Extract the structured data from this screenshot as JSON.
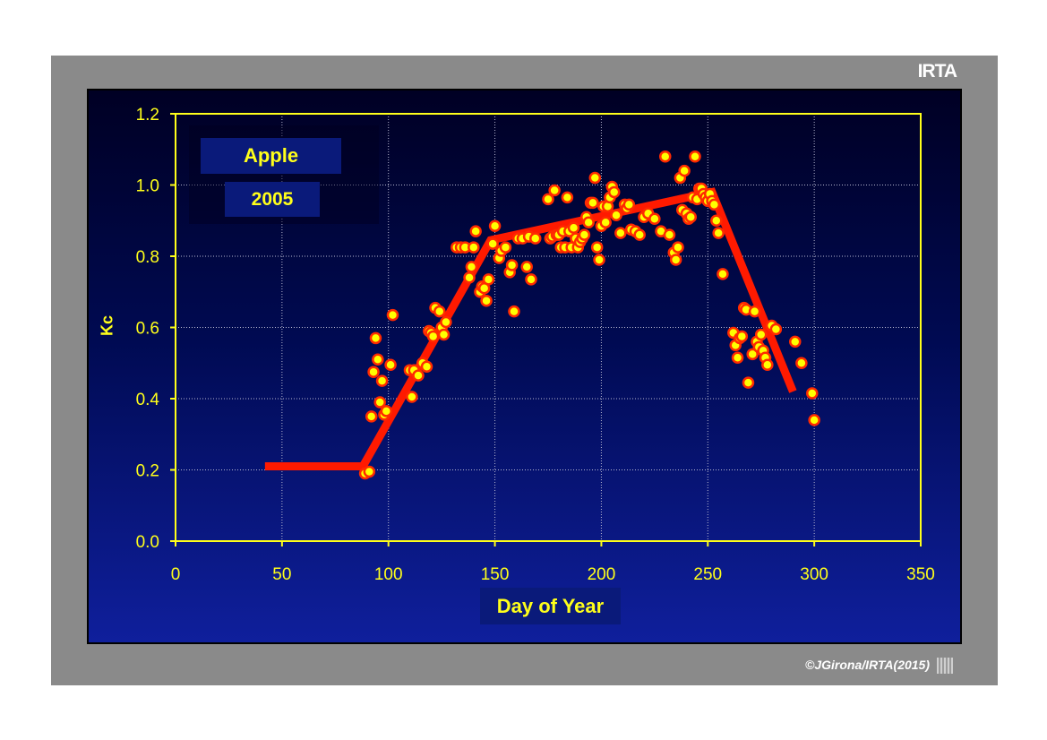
{
  "brand": "IRTA",
  "copyright": "©JGirona/IRTA(2015)",
  "chart_data": {
    "type": "scatter",
    "title": "",
    "series_label": "Apple",
    "year_label": "2005",
    "xlabel": "Day of Year",
    "ylabel": "Kc",
    "xlim": [
      0,
      350
    ],
    "ylim": [
      0.0,
      1.2
    ],
    "x_ticks": [
      "0",
      "50",
      "100",
      "150",
      "200",
      "250",
      "300",
      "350"
    ],
    "y_ticks": [
      "0.0",
      "0.2",
      "0.4",
      "0.6",
      "0.8",
      "1.0",
      "1.2"
    ],
    "grid": true,
    "marker_color": "#ffff00",
    "marker_edge_color": "#ff2a00",
    "line_color": "#ff1a00",
    "frame_color": "#ffff1a",
    "fitted_curve": [
      [
        42,
        0.21
      ],
      [
        88,
        0.21
      ],
      [
        148,
        0.845
      ],
      [
        252,
        0.98
      ],
      [
        290,
        0.42
      ]
    ],
    "points": [
      [
        89,
        0.19
      ],
      [
        91,
        0.195
      ],
      [
        92,
        0.35
      ],
      [
        93,
        0.475
      ],
      [
        94,
        0.57
      ],
      [
        95,
        0.51
      ],
      [
        96,
        0.39
      ],
      [
        97,
        0.45
      ],
      [
        98,
        0.355
      ],
      [
        99,
        0.365
      ],
      [
        101,
        0.495
      ],
      [
        102,
        0.635
      ],
      [
        110,
        0.48
      ],
      [
        111,
        0.405
      ],
      [
        112,
        0.48
      ],
      [
        114,
        0.465
      ],
      [
        116,
        0.5
      ],
      [
        118,
        0.49
      ],
      [
        119,
        0.59
      ],
      [
        120,
        0.585
      ],
      [
        121,
        0.575
      ],
      [
        122,
        0.655
      ],
      [
        124,
        0.645
      ],
      [
        125,
        0.6
      ],
      [
        126,
        0.58
      ],
      [
        127,
        0.615
      ],
      [
        132,
        0.825
      ],
      [
        134,
        0.825
      ],
      [
        136,
        0.825
      ],
      [
        138,
        0.74
      ],
      [
        139,
        0.77
      ],
      [
        140,
        0.825
      ],
      [
        141,
        0.87
      ],
      [
        143,
        0.7
      ],
      [
        144,
        0.715
      ],
      [
        145,
        0.71
      ],
      [
        146,
        0.675
      ],
      [
        147,
        0.735
      ],
      [
        149,
        0.835
      ],
      [
        150,
        0.885
      ],
      [
        152,
        0.795
      ],
      [
        153,
        0.815
      ],
      [
        155,
        0.825
      ],
      [
        157,
        0.755
      ],
      [
        158,
        0.775
      ],
      [
        159,
        0.645
      ],
      [
        161,
        0.85
      ],
      [
        163,
        0.85
      ],
      [
        165,
        0.77
      ],
      [
        166,
        0.855
      ],
      [
        167,
        0.735
      ],
      [
        169,
        0.85
      ],
      [
        175,
        0.96
      ],
      [
        176,
        0.85
      ],
      [
        177,
        0.855
      ],
      [
        178,
        0.985
      ],
      [
        179,
        0.86
      ],
      [
        180,
        0.86
      ],
      [
        181,
        0.825
      ],
      [
        182,
        0.87
      ],
      [
        183,
        0.825
      ],
      [
        184,
        0.965
      ],
      [
        185,
        0.87
      ],
      [
        186,
        0.825
      ],
      [
        187,
        0.88
      ],
      [
        188,
        0.85
      ],
      [
        189,
        0.825
      ],
      [
        190,
        0.84
      ],
      [
        191,
        0.85
      ],
      [
        192,
        0.86
      ],
      [
        193,
        0.91
      ],
      [
        194,
        0.895
      ],
      [
        195,
        0.95
      ],
      [
        196,
        0.95
      ],
      [
        197,
        1.02
      ],
      [
        198,
        0.825
      ],
      [
        199,
        0.79
      ],
      [
        200,
        0.885
      ],
      [
        201,
        0.94
      ],
      [
        202,
        0.895
      ],
      [
        203,
        0.94
      ],
      [
        204,
        0.965
      ],
      [
        205,
        0.995
      ],
      [
        206,
        0.98
      ],
      [
        207,
        0.915
      ],
      [
        209,
        0.865
      ],
      [
        211,
        0.945
      ],
      [
        212,
        0.935
      ],
      [
        213,
        0.945
      ],
      [
        214,
        0.875
      ],
      [
        216,
        0.87
      ],
      [
        218,
        0.86
      ],
      [
        220,
        0.91
      ],
      [
        222,
        0.92
      ],
      [
        225,
        0.905
      ],
      [
        228,
        0.87
      ],
      [
        230,
        1.08
      ],
      [
        232,
        0.86
      ],
      [
        234,
        0.81
      ],
      [
        235,
        0.79
      ],
      [
        236,
        0.825
      ],
      [
        237,
        1.02
      ],
      [
        238,
        0.93
      ],
      [
        239,
        1.04
      ],
      [
        240,
        0.92
      ],
      [
        241,
        0.905
      ],
      [
        242,
        0.91
      ],
      [
        243,
        0.965
      ],
      [
        244,
        1.08
      ],
      [
        245,
        0.96
      ],
      [
        246,
        0.99
      ],
      [
        247,
        0.99
      ],
      [
        248,
        0.975
      ],
      [
        249,
        0.965
      ],
      [
        250,
        0.955
      ],
      [
        251,
        0.975
      ],
      [
        252,
        0.955
      ],
      [
        253,
        0.945
      ],
      [
        254,
        0.9
      ],
      [
        255,
        0.865
      ],
      [
        257,
        0.75
      ],
      [
        262,
        0.585
      ],
      [
        263,
        0.55
      ],
      [
        264,
        0.515
      ],
      [
        265,
        0.57
      ],
      [
        266,
        0.575
      ],
      [
        267,
        0.655
      ],
      [
        268,
        0.65
      ],
      [
        269,
        0.445
      ],
      [
        271,
        0.525
      ],
      [
        272,
        0.645
      ],
      [
        273,
        0.56
      ],
      [
        274,
        0.545
      ],
      [
        275,
        0.58
      ],
      [
        276,
        0.535
      ],
      [
        277,
        0.515
      ],
      [
        278,
        0.495
      ],
      [
        280,
        0.605
      ],
      [
        282,
        0.595
      ],
      [
        291,
        0.56
      ],
      [
        294,
        0.5
      ],
      [
        299,
        0.415
      ],
      [
        300,
        0.34
      ]
    ]
  }
}
